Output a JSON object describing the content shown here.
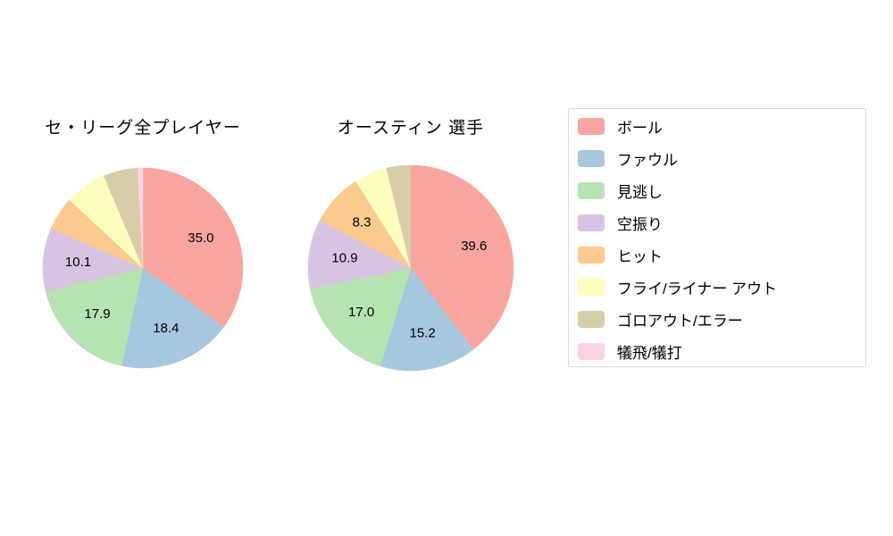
{
  "page": {
    "background": "#ffffff"
  },
  "slice_colors": [
    "#F8A5A0",
    "#A6C7DD",
    "#B7E2B1",
    "#D7C3E2",
    "#FACA8F",
    "#FDFDBE",
    "#D7CDA9",
    "#FAD2E8"
  ],
  "chart_data": [
    {
      "type": "pie",
      "title": "セ・リーグ全プレイヤー",
      "labels": [
        "ボール",
        "ファウル",
        "見逃し",
        "空振り",
        "ヒット",
        "フライ/ライナー アウト",
        "ゴロアウト/エラー",
        "犠飛/犠打"
      ],
      "values": [
        35.0,
        18.4,
        17.9,
        10.1,
        5.5,
        6.7,
        5.6,
        0.8
      ],
      "start_angle_deg": 0,
      "direction": "clockwise",
      "label_min": 8.0,
      "label_format": "one_decimal",
      "legend_position": "right"
    },
    {
      "type": "pie",
      "title": "オースティン 選手",
      "labels": [
        "ボール",
        "ファウル",
        "見逃し",
        "空振り",
        "ヒット",
        "フライ/ライナー アウト",
        "ゴロアウト/エラー",
        "犠飛/犠打"
      ],
      "values": [
        39.6,
        15.2,
        17.0,
        10.9,
        8.3,
        5.2,
        3.8,
        0.0
      ],
      "start_angle_deg": 0,
      "direction": "clockwise",
      "label_min": 8.0,
      "label_format": "one_decimal",
      "legend_position": "right"
    }
  ],
  "legend": {
    "items": [
      {
        "label": "ボール",
        "color": "#F8A5A0"
      },
      {
        "label": "ファウル",
        "color": "#A6C7DD"
      },
      {
        "label": "見逃し",
        "color": "#B7E2B1"
      },
      {
        "label": "空振り",
        "color": "#D7C3E2"
      },
      {
        "label": "ヒット",
        "color": "#FACA8F"
      },
      {
        "label": "フライ/ライナー アウト",
        "color": "#FDFDBE"
      },
      {
        "label": "ゴロアウト/エラー",
        "color": "#D7CDA9"
      },
      {
        "label": "犠飛/犠打",
        "color": "#FAD2E8"
      }
    ]
  }
}
